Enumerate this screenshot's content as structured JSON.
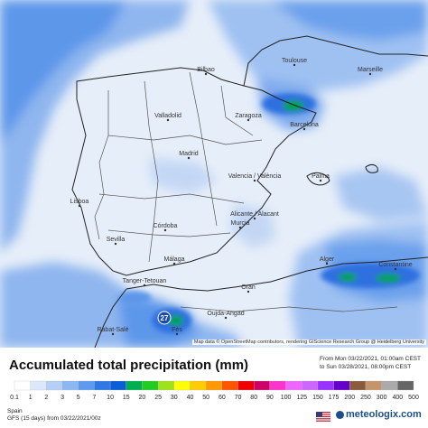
{
  "map": {
    "cities": [
      {
        "name": "Toulouse"
      },
      {
        "name": "Marseille"
      },
      {
        "name": "Bilbao"
      },
      {
        "name": "Valladolid"
      },
      {
        "name": "Zaragoza"
      },
      {
        "name": "Barcelona"
      },
      {
        "name": "Madrid"
      },
      {
        "name": "Valencia / València"
      },
      {
        "name": "Palma"
      },
      {
        "name": "Alicante / Alacant"
      },
      {
        "name": "Murcia"
      },
      {
        "name": "Lisboa"
      },
      {
        "name": "Sevilla"
      },
      {
        "name": "Córdoba"
      },
      {
        "name": "Málaga"
      },
      {
        "name": "Tanger-Tetouan"
      },
      {
        "name": "Rabat-Salé"
      },
      {
        "name": "Fès"
      },
      {
        "name": "Oujda-Angad"
      },
      {
        "name": "Oran"
      },
      {
        "name": "Alger"
      },
      {
        "name": "Constantine"
      }
    ],
    "max_value_label": "27",
    "credit": "Map data © OpenStreetMap contributors, rendering GIScience Research Group @ Heidelberg University"
  },
  "title": "Accumulated total precipitation (mm)",
  "dates": {
    "from": "From Mon 03/22/2021, 01:00am CEST",
    "to": "to Sun 03/28/2021, 08:00pm CEST"
  },
  "legend": {
    "labels": [
      "0.1",
      "1",
      "2",
      "3",
      "5",
      "7",
      "10",
      "15",
      "20",
      "25",
      "30",
      "40",
      "50",
      "60",
      "70",
      "80",
      "90",
      "100",
      "125",
      "150",
      "175",
      "200",
      "250",
      "300",
      "400",
      "500"
    ],
    "colors": [
      "#ffffff",
      "#dbe8fb",
      "#b4d0f7",
      "#8cb7f2",
      "#5f9aee",
      "#2f79e6",
      "#0b5fd6",
      "#00b050",
      "#22cc22",
      "#9ee21c",
      "#ffff00",
      "#ffcc00",
      "#ff9900",
      "#ff5500",
      "#ee0000",
      "#cc0066",
      "#ff33cc",
      "#ee66ff",
      "#cc66ff",
      "#9933ff",
      "#6600cc",
      "#8a5a3c",
      "#c4946a",
      "#aaaaaa",
      "#666666"
    ]
  },
  "footer": {
    "region": "Spain",
    "model": "GFS (15 days) from  03/22/2021/00z"
  },
  "brand": "meteologix.com"
}
